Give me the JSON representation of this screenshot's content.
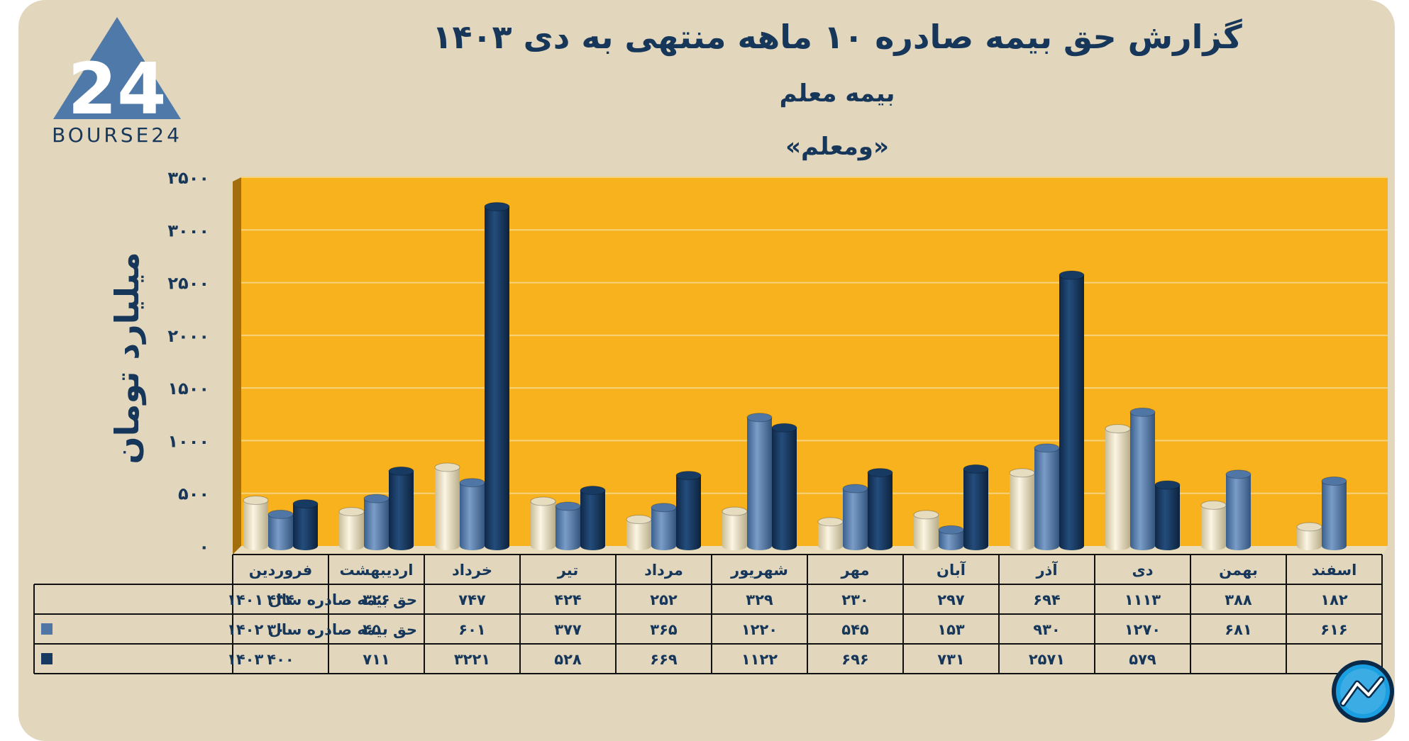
{
  "logo": {
    "text": "BOURSE24",
    "mark": "24"
  },
  "chart_data": {
    "type": "bar",
    "title": "گزارش  حق بیمه صادره ۱۰ ماهه منتهی به دی ۱۴۰۳",
    "subtitle": "بیمه معلم",
    "subtitle2": "«ومعلم»",
    "ylabel": "میلیارد تومان",
    "ylim": [
      0,
      3500
    ],
    "yticks": [
      0,
      500,
      1000,
      1500,
      2000,
      2500,
      3000,
      3500
    ],
    "ytick_labels": [
      "۰",
      "۵۰۰",
      "۱۰۰۰",
      "۱۵۰۰",
      "۲۰۰۰",
      "۲۵۰۰",
      "۳۰۰۰",
      "۳۵۰۰"
    ],
    "categories": [
      "فروردین",
      "اردیبهشت",
      "خرداد",
      "تیر",
      "مرداد",
      "شهریور",
      "مهر",
      "آبان",
      "آذر",
      "دی",
      "بهمن",
      "اسفند"
    ],
    "series": [
      {
        "name": "حق بیمه صادره سال ۱۴۰۱",
        "color": "#e6dcc0",
        "values": [
          434,
          326,
          747,
          424,
          252,
          329,
          230,
          297,
          694,
          1113,
          388,
          182
        ],
        "labels": [
          "۴۳۴",
          "۳۲۶",
          "۷۴۷",
          "۴۲۴",
          "۲۵۲",
          "۳۲۹",
          "۲۳۰",
          "۲۹۷",
          "۶۹۴",
          "۱۱۱۳",
          "۳۸۸",
          "۱۸۲"
        ]
      },
      {
        "name": "حق بیمه صادره سال ۱۴۰۲",
        "color": "#4f76a5",
        "values": [
          300,
          450,
          601,
          377,
          365,
          1220,
          545,
          153,
          930,
          1270,
          681,
          616
        ],
        "labels": [
          "۳۰۰",
          "۴۵۰",
          "۶۰۱",
          "۳۷۷",
          "۳۶۵",
          "۱۲۲۰",
          "۵۴۵",
          "۱۵۳",
          "۹۳۰",
          "۱۲۷۰",
          "۶۸۱",
          "۶۱۶"
        ]
      },
      {
        "name": "۱۴۰۳",
        "color": "#173a62",
        "values": [
          400,
          711,
          3221,
          528,
          669,
          1122,
          696,
          731,
          2571,
          579,
          null,
          null
        ],
        "labels": [
          "۴۰۰",
          "۷۱۱",
          "۳۲۲۱",
          "۵۲۸",
          "۶۶۹",
          "۱۱۲۲",
          "۶۹۶",
          "۷۳۱",
          "۲۵۷۱",
          "۵۷۹",
          "",
          ""
        ]
      }
    ],
    "grid": true,
    "legend": "table-left"
  },
  "colors": {
    "background": "#e2d7bd",
    "plot": "#f8b21d",
    "text": "#16365a"
  }
}
